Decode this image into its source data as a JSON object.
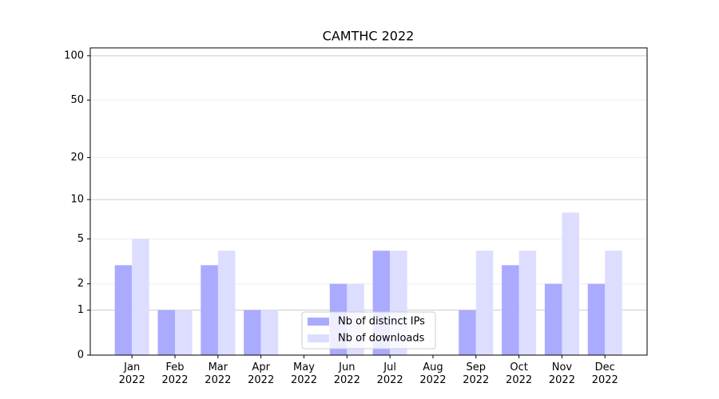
{
  "chart_data": {
    "type": "bar",
    "title": "CAMTHC 2022",
    "categories": [
      "Jan\n2022",
      "Feb\n2022",
      "Mar\n2022",
      "Apr\n2022",
      "May\n2022",
      "Jun\n2022",
      "Jul\n2022",
      "Aug\n2022",
      "Sep\n2022",
      "Oct\n2022",
      "Nov\n2022",
      "Dec\n2022"
    ],
    "series": [
      {
        "name": "Nb of distinct IPs",
        "color": "#aaaaff",
        "values": [
          3,
          1,
          3,
          1,
          0,
          2,
          4,
          0,
          1,
          3,
          2,
          2
        ]
      },
      {
        "name": "Nb of downloads",
        "color": "#ddddff",
        "values": [
          5,
          1,
          4,
          1,
          0,
          2,
          4,
          0,
          4,
          4,
          8,
          4
        ]
      }
    ],
    "yscale": "log1p",
    "ylim": [
      0,
      113
    ],
    "yticks": [
      0,
      1,
      2,
      5,
      10,
      20,
      50,
      100
    ],
    "xlim": [
      -0.97,
      11.98
    ],
    "grid": true,
    "legend": "lower center"
  }
}
